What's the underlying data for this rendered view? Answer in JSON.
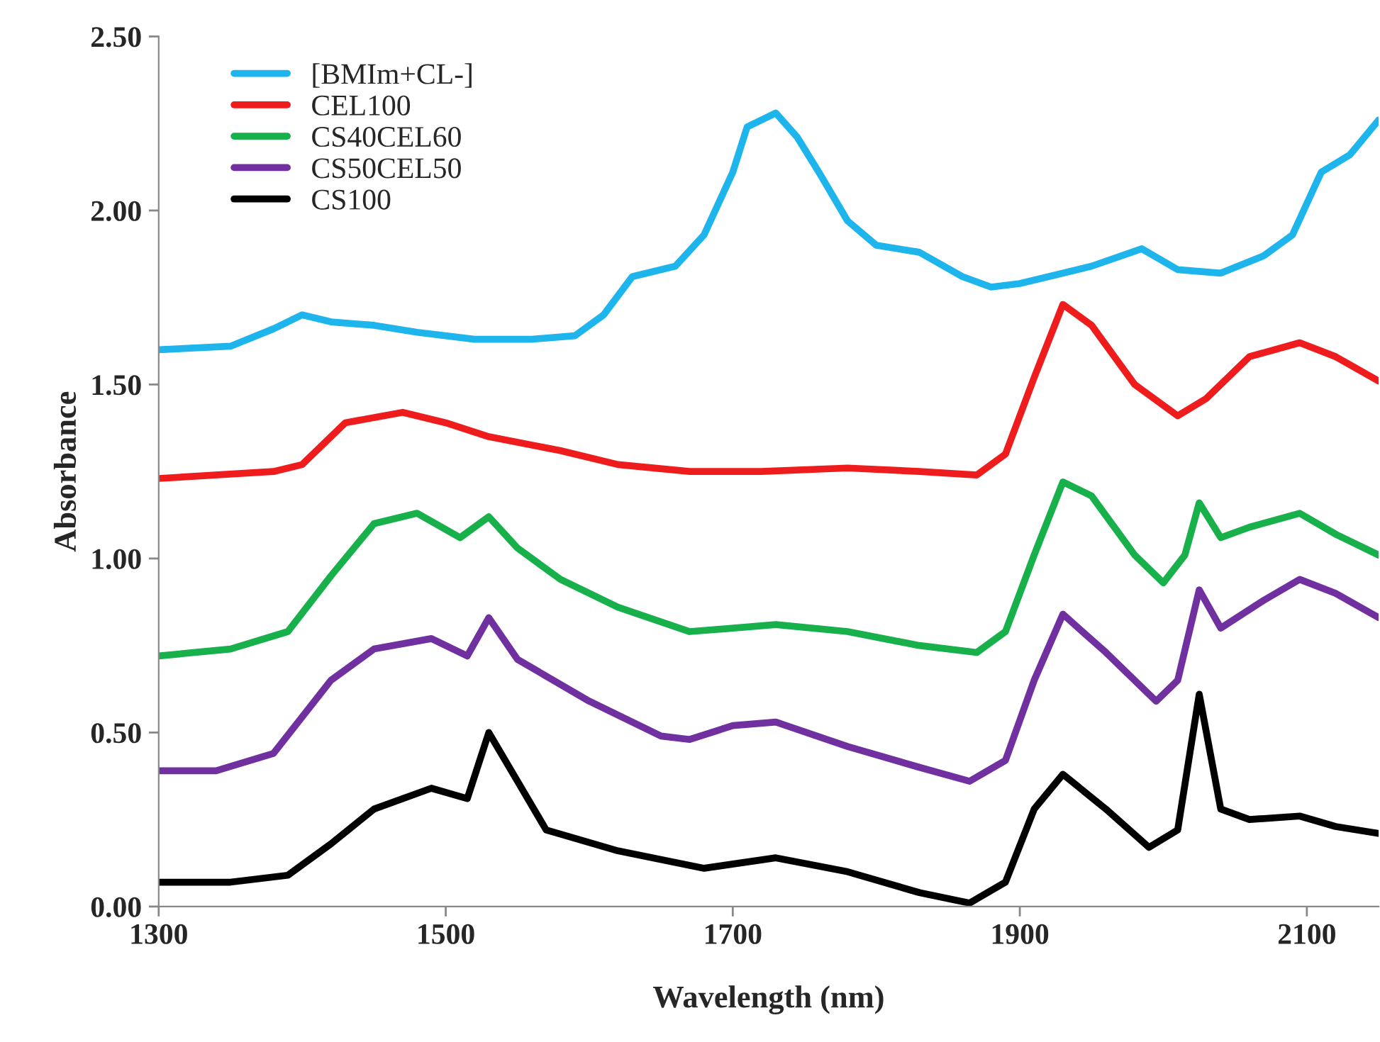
{
  "chart_data": {
    "type": "line",
    "xlabel": "Wavelength (nm)",
    "ylabel": "Absorbance",
    "xlim": [
      1300,
      2150
    ],
    "ylim": [
      0,
      2.5
    ],
    "xticks": [
      1300,
      1500,
      1700,
      1900,
      2100
    ],
    "yticks": [
      {
        "value": 0,
        "label": "0.00"
      },
      {
        "value": 0.5,
        "label": "0.50"
      },
      {
        "value": 1,
        "label": "1.00"
      },
      {
        "value": 1.5,
        "label": "1.50"
      },
      {
        "value": 2,
        "label": "2.00"
      },
      {
        "value": 2.5,
        "label": "2.50"
      }
    ],
    "grid": false,
    "legend": "top left",
    "marker": "none",
    "line_style": "solid",
    "series": [
      {
        "name": "[BMIm+CL-]",
        "color": "#1eb4ec",
        "x": [
          1300,
          1350,
          1380,
          1400,
          1420,
          1450,
          1480,
          1520,
          1560,
          1590,
          1610,
          1630,
          1660,
          1680,
          1700,
          1710,
          1730,
          1745,
          1760,
          1780,
          1800,
          1830,
          1860,
          1880,
          1900,
          1920,
          1950,
          1985,
          2010,
          2040,
          2070,
          2090,
          2110,
          2130,
          2150
        ],
        "values": [
          1.6,
          1.61,
          1.66,
          1.7,
          1.68,
          1.67,
          1.65,
          1.63,
          1.63,
          1.64,
          1.7,
          1.81,
          1.84,
          1.93,
          2.11,
          2.24,
          2.28,
          2.21,
          2.11,
          1.97,
          1.9,
          1.88,
          1.81,
          1.78,
          1.79,
          1.81,
          1.84,
          1.89,
          1.83,
          1.82,
          1.87,
          1.93,
          2.11,
          2.16,
          2.26
        ]
      },
      {
        "name": "CEL100",
        "color": "#ee1c1c",
        "x": [
          1300,
          1380,
          1400,
          1430,
          1470,
          1500,
          1530,
          1580,
          1620,
          1670,
          1720,
          1780,
          1830,
          1870,
          1890,
          1910,
          1930,
          1950,
          1980,
          2010,
          2030,
          2060,
          2095,
          2120,
          2150
        ],
        "values": [
          1.23,
          1.25,
          1.27,
          1.39,
          1.42,
          1.39,
          1.35,
          1.31,
          1.27,
          1.25,
          1.25,
          1.26,
          1.25,
          1.24,
          1.3,
          1.52,
          1.73,
          1.67,
          1.5,
          1.41,
          1.46,
          1.58,
          1.62,
          1.58,
          1.51
        ]
      },
      {
        "name": "CS40CEL60",
        "color": "#17b04b",
        "x": [
          1300,
          1350,
          1390,
          1420,
          1450,
          1480,
          1510,
          1530,
          1550,
          1580,
          1620,
          1670,
          1730,
          1780,
          1830,
          1870,
          1890,
          1910,
          1930,
          1950,
          1980,
          2000,
          2015,
          2025,
          2040,
          2060,
          2095,
          2120,
          2150
        ],
        "values": [
          0.72,
          0.74,
          0.79,
          0.95,
          1.1,
          1.13,
          1.06,
          1.12,
          1.03,
          0.94,
          0.86,
          0.79,
          0.81,
          0.79,
          0.75,
          0.73,
          0.79,
          1.01,
          1.22,
          1.18,
          1.01,
          0.93,
          1.01,
          1.16,
          1.06,
          1.09,
          1.13,
          1.07,
          1.01
        ]
      },
      {
        "name": "CS50CEL50",
        "color": "#7030a0",
        "x": [
          1300,
          1340,
          1380,
          1420,
          1450,
          1490,
          1515,
          1530,
          1550,
          1600,
          1650,
          1670,
          1700,
          1730,
          1780,
          1830,
          1865,
          1890,
          1910,
          1930,
          1960,
          1995,
          2010,
          2025,
          2040,
          2070,
          2095,
          2120,
          2150
        ],
        "values": [
          0.39,
          0.39,
          0.44,
          0.65,
          0.74,
          0.77,
          0.72,
          0.83,
          0.71,
          0.59,
          0.49,
          0.48,
          0.52,
          0.53,
          0.46,
          0.4,
          0.36,
          0.42,
          0.65,
          0.84,
          0.73,
          0.59,
          0.65,
          0.91,
          0.8,
          0.88,
          0.94,
          0.9,
          0.83
        ]
      },
      {
        "name": "CS100",
        "color": "#000000",
        "x": [
          1300,
          1350,
          1390,
          1420,
          1450,
          1490,
          1515,
          1530,
          1550,
          1570,
          1620,
          1680,
          1730,
          1780,
          1830,
          1865,
          1890,
          1910,
          1930,
          1960,
          1990,
          2010,
          2025,
          2040,
          2060,
          2095,
          2120,
          2150
        ],
        "values": [
          0.07,
          0.07,
          0.09,
          0.18,
          0.28,
          0.34,
          0.31,
          0.5,
          0.36,
          0.22,
          0.16,
          0.11,
          0.14,
          0.1,
          0.04,
          0.01,
          0.07,
          0.28,
          0.38,
          0.28,
          0.17,
          0.22,
          0.61,
          0.28,
          0.25,
          0.26,
          0.23,
          0.21
        ]
      }
    ]
  }
}
